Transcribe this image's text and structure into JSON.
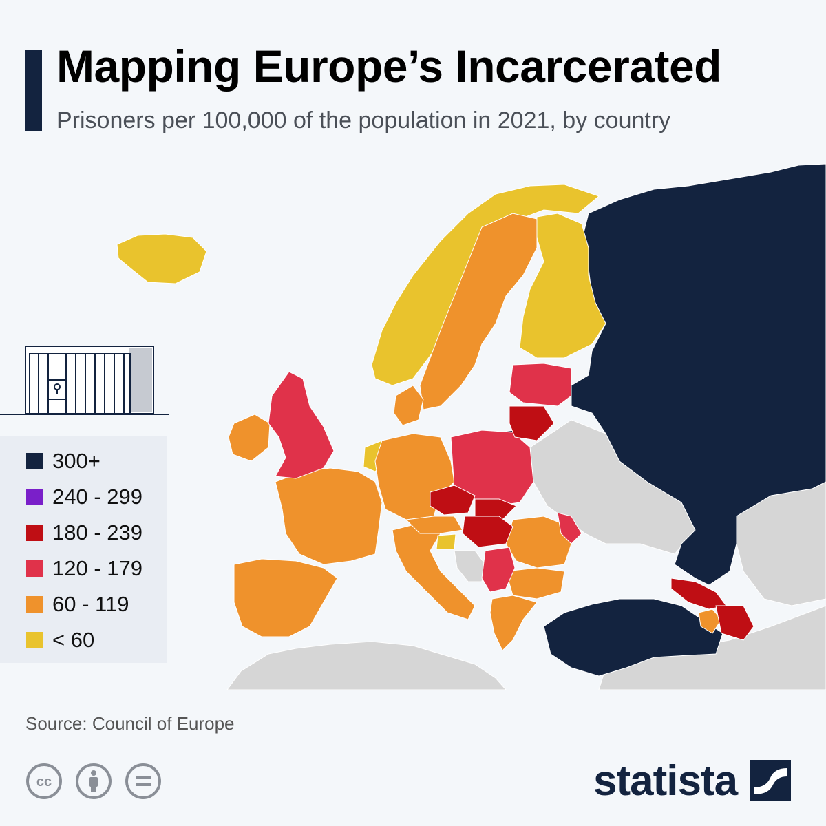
{
  "header": {
    "title": "Mapping Europe’s Incarcerated",
    "subtitle": "Prisoners per 100,000 of the population in 2021, by country"
  },
  "legend": [
    {
      "label": "300+",
      "color": "#13233f"
    },
    {
      "label": "240 - 299",
      "color": "#7a1fc9"
    },
    {
      "label": "180 - 239",
      "color": "#bf0e14"
    },
    {
      "label": "120 - 179",
      "color": "#e0324a"
    },
    {
      "label": "60 - 119",
      "color": "#ef922c"
    },
    {
      "label": "< 60",
      "color": "#e9c32d"
    }
  ],
  "map_colors": {
    "no_data": "#d6d6d6",
    "sea": "#f4f7fa",
    "border": "#ffffff"
  },
  "footer": {
    "source": "Source: Council of Europe",
    "brand": "statista",
    "license_icons": [
      "cc-icon",
      "attribution-icon",
      "no-derivatives-icon"
    ]
  }
}
